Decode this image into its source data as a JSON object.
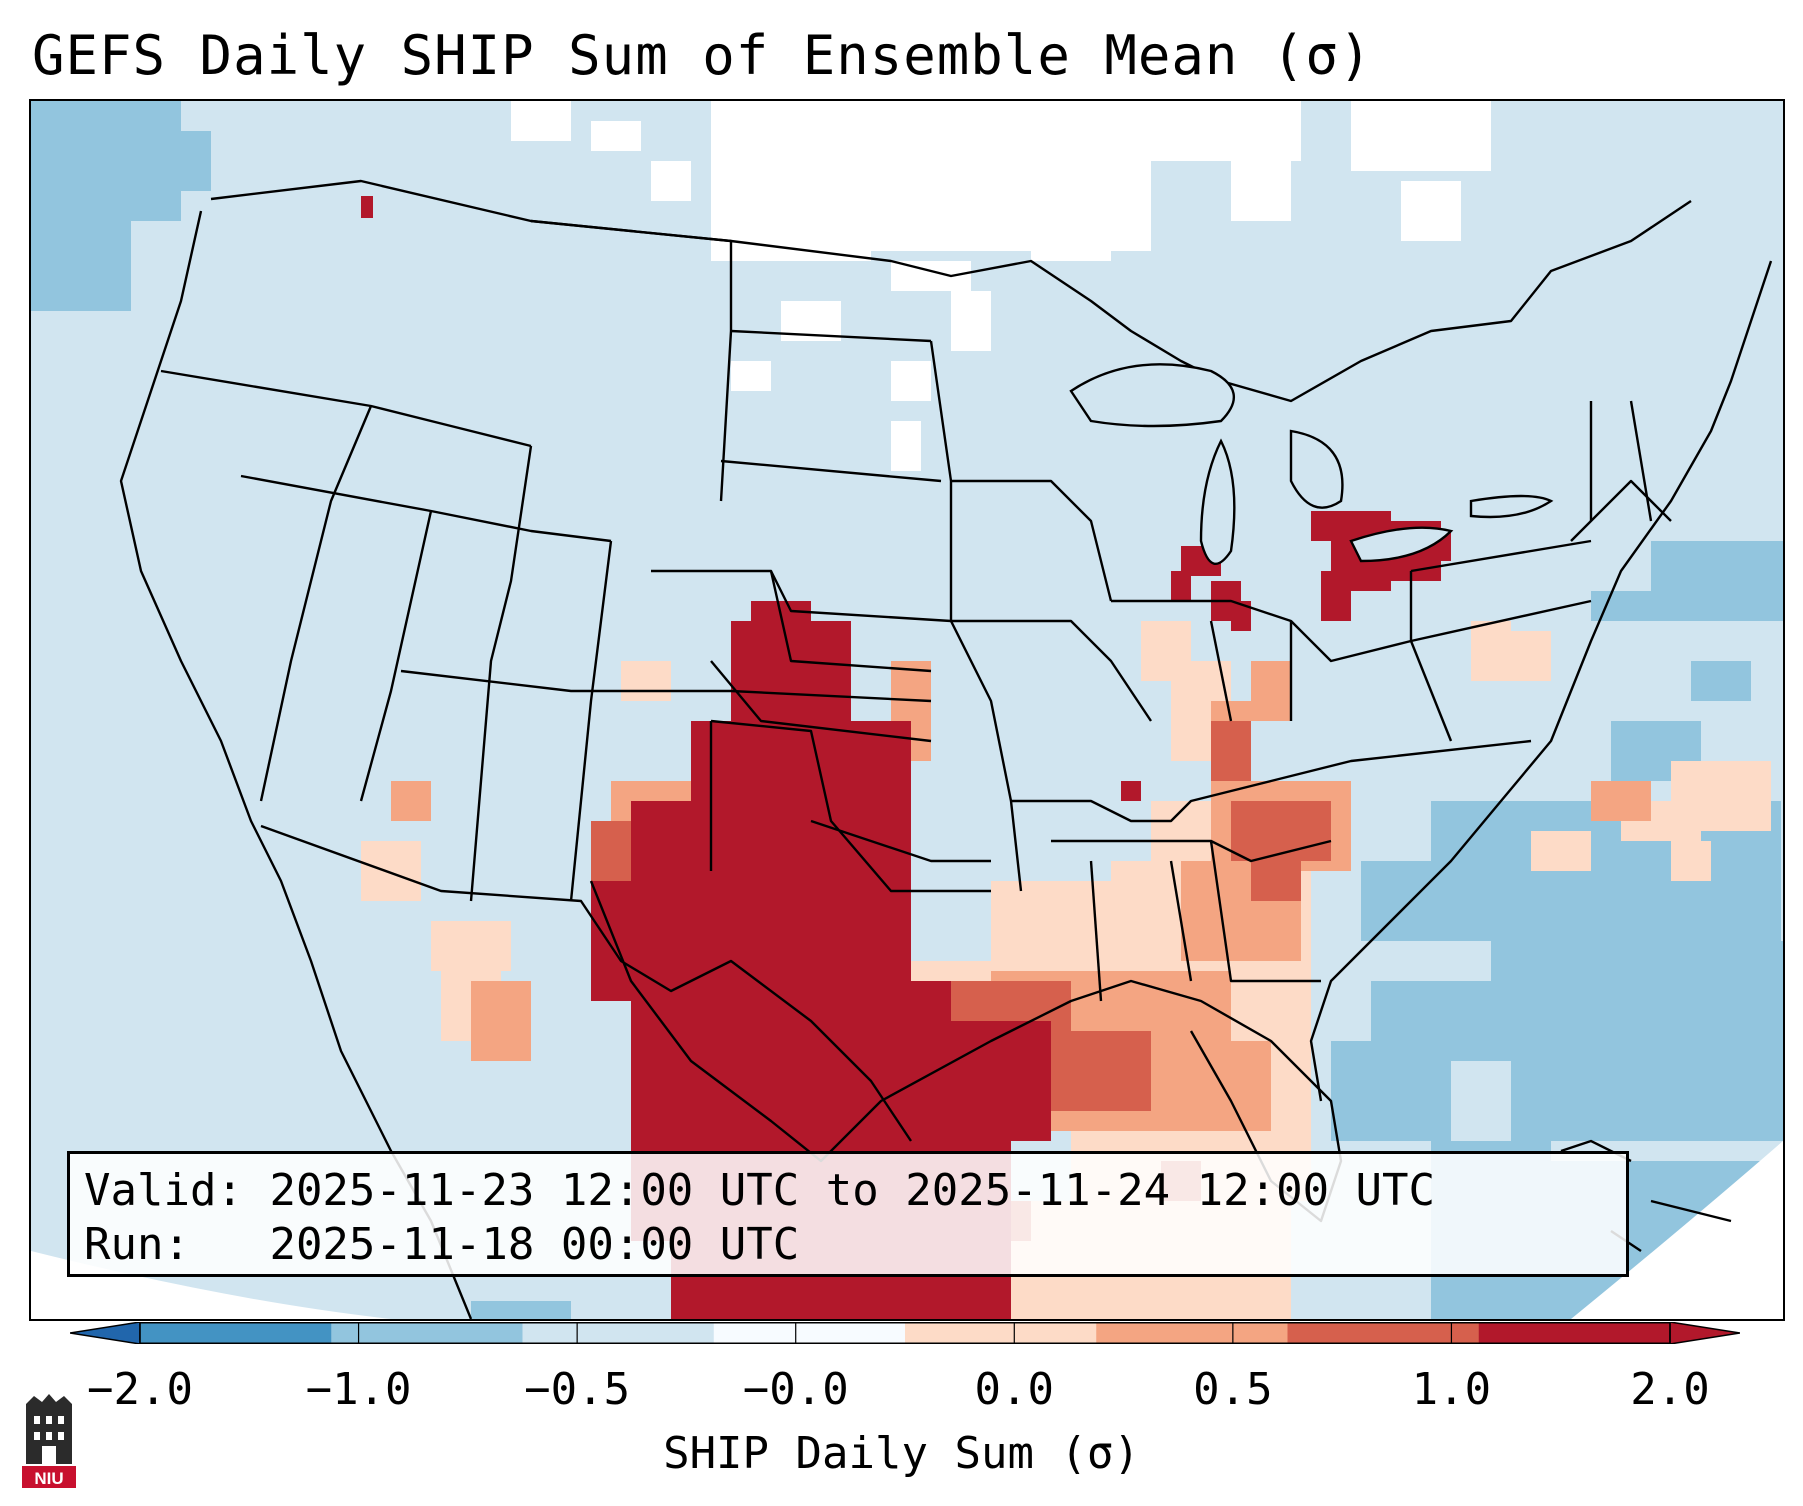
{
  "title": "GEFS Daily SHIP Sum of Ensemble Mean (σ)",
  "info": {
    "valid_label": "Valid:",
    "valid_value": "2025-11-23 12:00 UTC to 2025-11-24 12:00 UTC",
    "run_label": "Run:",
    "run_value": "2025-11-18 00:00 UTC"
  },
  "colorbar": {
    "label": "SHIP Daily Sum (σ)",
    "ticks": [
      "−2.0",
      "−1.0",
      "−0.5",
      "−0.0",
      "0.0",
      "0.5",
      "1.0",
      "2.0"
    ],
    "bin_colors": [
      "#4393c3",
      "#92c5de",
      "#d1e5f0",
      "#f7fbff",
      "#fddbc7",
      "#f4a582",
      "#d6604d",
      "#b2182b"
    ],
    "extend_min_color": "#2166ac",
    "extend_max_color": "#b2182b"
  },
  "map": {
    "projection": "Lambert conformal, CONUS",
    "dominant_anomaly": "Strongly positive SHIP (>2σ) over Texas, Oklahoma panhandle, and New Mexico; secondary maxima over Ohio and Pennsylvania; weak positive values across the Gulf Coast and Southeast",
    "background_class_color": "#d1e5f0",
    "ocean_negative_color": "#92c5de"
  },
  "logo": {
    "text": "NIU"
  }
}
